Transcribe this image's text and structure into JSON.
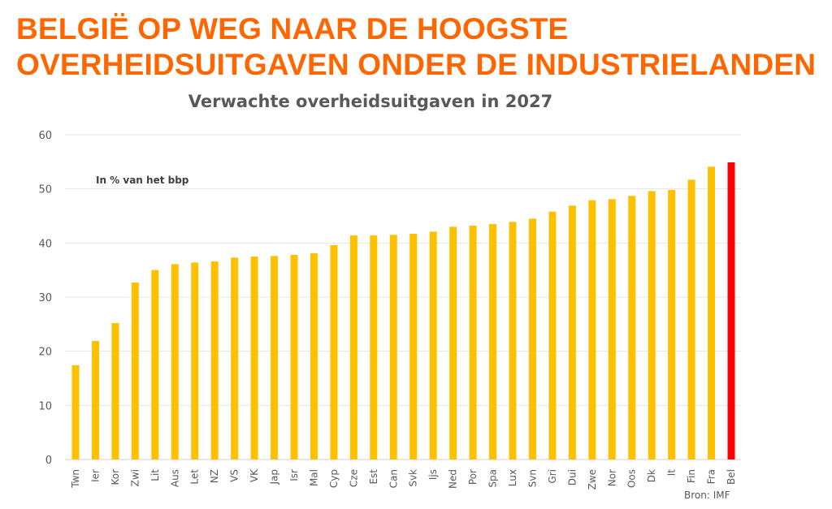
{
  "headline": {
    "line1": "BELGIË OP WEG NAAR DE HOOGSTE",
    "line2": "OVERHEIDSUITGAVEN ONDER DE INDUSTRIELANDEN"
  },
  "chart_data": {
    "type": "bar",
    "title": "Verwachte overheidsuitgaven in 2027",
    "annotation": "In % van het bbp",
    "source": "Bron: IMF",
    "xlabel": "",
    "ylabel": "",
    "ylim": [
      0,
      60
    ],
    "yticks": [
      0,
      10,
      20,
      30,
      40,
      50,
      60
    ],
    "grid": true,
    "categories": [
      "Twn",
      "Ier",
      "Kor",
      "Zwi",
      "Lit",
      "Aus",
      "Let",
      "NZ",
      "VS",
      "VK",
      "Jap",
      "Isr",
      "Mal",
      "Cyp",
      "Cze",
      "Est",
      "Can",
      "Svk",
      "Ijs",
      "Ned",
      "Por",
      "Spa",
      "Lux",
      "Svn",
      "Gri",
      "Dui",
      "Zwe",
      "Nor",
      "Oos",
      "Dk",
      "It",
      "Fin",
      "Fra",
      "Bel"
    ],
    "values": [
      17.4,
      21.9,
      25.2,
      32.7,
      35.0,
      36.1,
      36.4,
      36.6,
      37.3,
      37.5,
      37.6,
      37.8,
      38.1,
      39.6,
      41.4,
      41.4,
      41.5,
      41.7,
      42.1,
      43.0,
      43.2,
      43.5,
      43.9,
      44.5,
      45.8,
      46.9,
      47.9,
      48.1,
      48.7,
      49.6,
      49.8,
      51.7,
      54.1,
      54.9
    ],
    "highlight": "Bel",
    "colors": {
      "bar": "#ffc000",
      "highlight": "#ff0000",
      "title": "#ff6600"
    }
  }
}
